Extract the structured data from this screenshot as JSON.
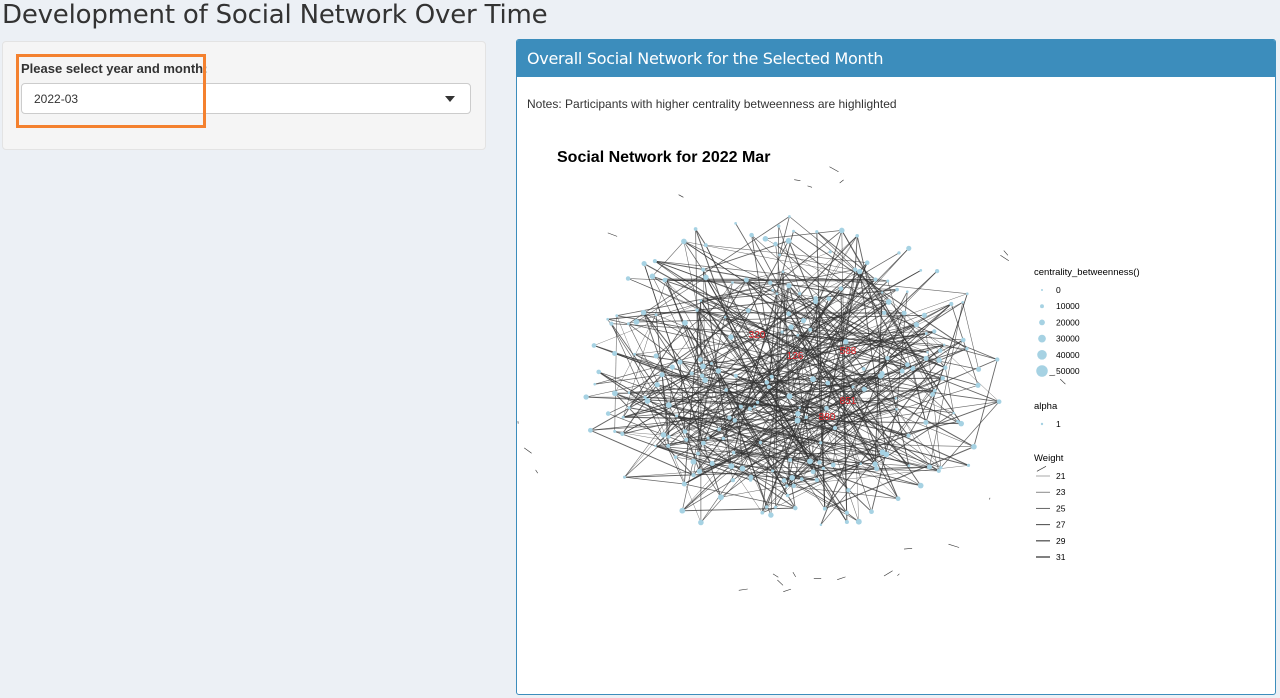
{
  "page": {
    "title": "Development of Social Network Over Time"
  },
  "sidebar": {
    "select_label": "Please select year and month:",
    "selected_value": "2022-03"
  },
  "main_panel": {
    "header": "Overall Social Network for the Selected Month",
    "notes": "Notes: Participants with higher centrality betweenness are highlighted"
  },
  "chart_data": {
    "type": "network",
    "title": "Social Network for 2022 Mar",
    "highlighted_nodes": [
      "320",
      "126",
      "588",
      "851",
      "880"
    ],
    "legend": {
      "size_title": "centrality_betweenness()",
      "size_values": [
        "0",
        "10000",
        "20000",
        "30000",
        "40000",
        "50000"
      ],
      "alpha_title": "alpha",
      "alpha_values": [
        "1"
      ],
      "weight_title": "Weight",
      "weight_values": [
        "21",
        "23",
        "25",
        "27",
        "29",
        "31"
      ]
    },
    "colors": {
      "node": "#a6d2e3",
      "edge": "#333333",
      "highlight_label": "#e8262b"
    }
  }
}
